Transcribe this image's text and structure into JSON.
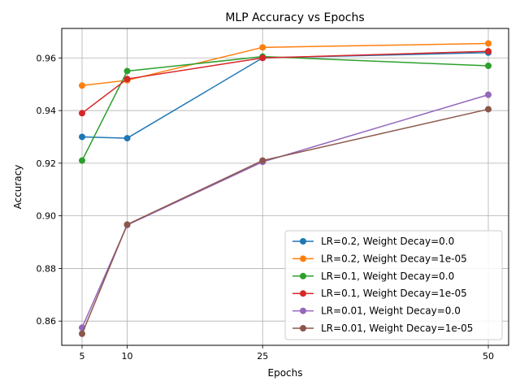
{
  "chart_data": {
    "type": "line",
    "title": "MLP Accuracy vs Epochs",
    "xlabel": "Epochs",
    "ylabel": "Accuracy",
    "x": [
      5,
      10,
      25,
      50
    ],
    "xticks": [
      "5",
      "10",
      "25",
      "50"
    ],
    "xlim": [
      2.75,
      52.25
    ],
    "ylim": [
      0.8508,
      0.9712
    ],
    "yticks": [
      "0.86",
      "0.88",
      "0.90",
      "0.92",
      "0.94",
      "0.96"
    ],
    "grid": true,
    "legend_position": "bottom-right",
    "series": [
      {
        "name": "LR=0.2, Weight Decay=0.0",
        "color": "#1f77b4",
        "values": [
          0.93,
          0.9295,
          0.96,
          0.962
        ]
      },
      {
        "name": "LR=0.2, Weight Decay=1e-05",
        "color": "#ff7f0e",
        "values": [
          0.9495,
          0.9515,
          0.964,
          0.9655
        ]
      },
      {
        "name": "LR=0.1, Weight Decay=0.0",
        "color": "#2ca02c",
        "values": [
          0.921,
          0.955,
          0.9605,
          0.957
        ]
      },
      {
        "name": "LR=0.1, Weight Decay=1e-05",
        "color": "#d62728",
        "values": [
          0.939,
          0.952,
          0.96,
          0.9625
        ]
      },
      {
        "name": "LR=0.01, Weight Decay=0.0",
        "color": "#9467bd",
        "values": [
          0.8575,
          0.8965,
          0.9205,
          0.946
        ]
      },
      {
        "name": "LR=0.01, Weight Decay=1e-05",
        "color": "#8c564b",
        "values": [
          0.8552,
          0.8967,
          0.921,
          0.9405
        ]
      }
    ]
  }
}
